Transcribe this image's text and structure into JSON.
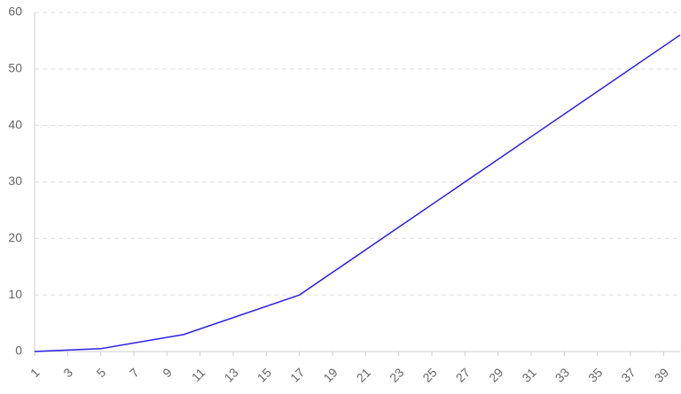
{
  "chart_data": {
    "type": "line",
    "x": [
      1,
      5,
      10,
      17,
      40
    ],
    "series": [
      {
        "color": "#2a1ff0",
        "values": [
          0,
          0.5,
          3,
          10,
          56
        ]
      }
    ],
    "xlim": [
      1,
      40
    ],
    "xticks": [
      1,
      3,
      5,
      7,
      9,
      11,
      13,
      15,
      17,
      19,
      21,
      23,
      25,
      27,
      29,
      31,
      33,
      35,
      37,
      39
    ],
    "ylim": [
      0,
      60
    ],
    "yticks": [
      0,
      10,
      20,
      30,
      40,
      50,
      60
    ],
    "grid": true
  }
}
